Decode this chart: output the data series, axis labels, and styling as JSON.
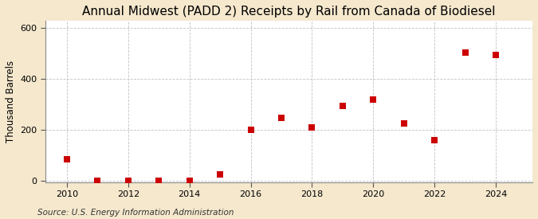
{
  "title": "Annual Midwest (PADD 2) Receipts by Rail from Canada of Biodiesel",
  "ylabel": "Thousand Barrels",
  "source": "Source: U.S. Energy Information Administration",
  "years": [
    2010,
    2011,
    2012,
    2013,
    2014,
    2015,
    2016,
    2017,
    2018,
    2019,
    2020,
    2021,
    2022,
    2023,
    2024
  ],
  "values": [
    85,
    2,
    2,
    3,
    2,
    25,
    200,
    248,
    210,
    295,
    320,
    228,
    160,
    505,
    495
  ],
  "marker_color": "#cc0000",
  "marker_size": 28,
  "background_color": "#f5e8cd",
  "plot_background": "#ffffff",
  "grid_color": "#bbbbbb",
  "title_fontsize": 11,
  "label_fontsize": 8.5,
  "tick_fontsize": 8,
  "source_fontsize": 7.5,
  "xlim": [
    2009.3,
    2025.2
  ],
  "ylim": [
    -5,
    630
  ],
  "yticks": [
    0,
    200,
    400,
    600
  ],
  "xticks": [
    2010,
    2012,
    2014,
    2016,
    2018,
    2020,
    2022,
    2024
  ]
}
